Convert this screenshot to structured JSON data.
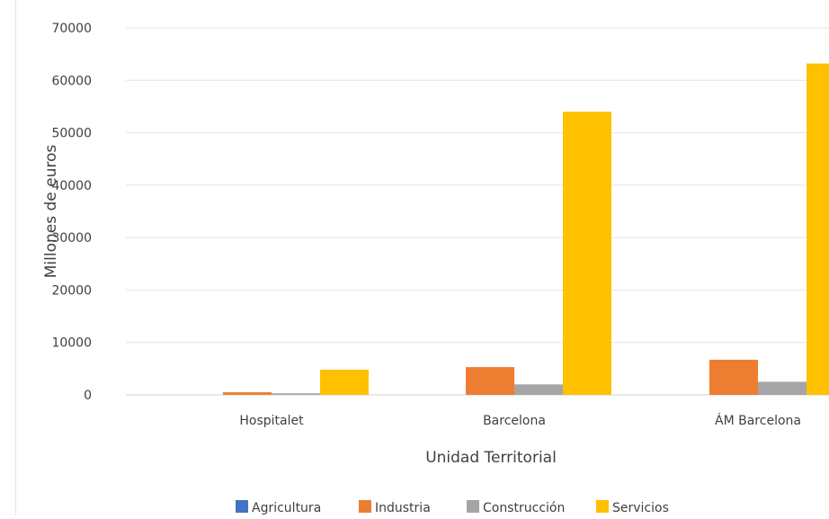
{
  "chart_data": {
    "type": "bar",
    "title": "",
    "xlabel": "Unidad Territorial",
    "ylabel": "Millones de euros",
    "ylim": [
      0,
      70000
    ],
    "yticks": [
      0,
      10000,
      20000,
      30000,
      40000,
      50000,
      60000,
      70000
    ],
    "categories": [
      "Hospitalet",
      "Barcelona",
      "ÁM Barcelona"
    ],
    "series": [
      {
        "name": "Agricultura",
        "color": "#4472C4",
        "values": [
          0,
          0,
          0
        ]
      },
      {
        "name": "Industria",
        "color": "#ED7D31",
        "values": [
          500,
          5300,
          6700
        ]
      },
      {
        "name": "Construcción",
        "color": "#A5A5A5",
        "values": [
          300,
          2000,
          2500
        ]
      },
      {
        "name": "Servicios",
        "color": "#FFC000",
        "values": [
          4800,
          54000,
          63200
        ]
      }
    ],
    "grid": true,
    "legend_position": "bottom"
  }
}
